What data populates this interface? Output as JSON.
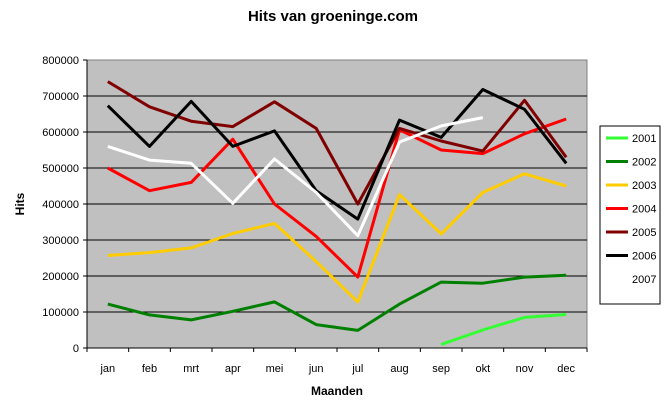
{
  "chart_data": {
    "type": "line",
    "title": "Hits van groeninge.com",
    "xlabel": "Maanden",
    "ylabel": "Hits",
    "categories": [
      "jan",
      "feb",
      "mrt",
      "apr",
      "mei",
      "jun",
      "jul",
      "aug",
      "sep",
      "okt",
      "nov",
      "dec"
    ],
    "ylim": [
      0,
      800000
    ],
    "y_ticks": [
      0,
      100000,
      200000,
      300000,
      400000,
      500000,
      600000,
      700000,
      800000
    ],
    "grid": true,
    "plot_background": "#c0c0c0",
    "legend_position": "right",
    "series": [
      {
        "name": "2001",
        "color": "#33ff33",
        "values": [
          null,
          null,
          null,
          null,
          null,
          null,
          null,
          null,
          10000,
          50000,
          85000,
          93000
        ]
      },
      {
        "name": "2002",
        "color": "#008000",
        "values": [
          122000,
          92000,
          78000,
          102000,
          128000,
          65000,
          49000,
          122000,
          183000,
          180000,
          197000,
          202000
        ]
      },
      {
        "name": "2003",
        "color": "#ffcc00",
        "values": [
          257000,
          265000,
          278000,
          318000,
          346000,
          240000,
          128000,
          426000,
          317000,
          432000,
          484000,
          450000
        ]
      },
      {
        "name": "2004",
        "color": "#ff0000",
        "values": [
          500000,
          437000,
          460000,
          580000,
          400000,
          310000,
          197000,
          606000,
          550000,
          540000,
          595000,
          636000
        ]
      },
      {
        "name": "2005",
        "color": "#800000",
        "values": [
          740000,
          670000,
          630000,
          615000,
          684000,
          610000,
          400000,
          610000,
          575000,
          547000,
          688000,
          530000
        ]
      },
      {
        "name": "2006",
        "color": "#000000",
        "values": [
          673000,
          560000,
          685000,
          560000,
          603000,
          437000,
          358000,
          633000,
          585000,
          718000,
          663000,
          513000
        ]
      },
      {
        "name": "2007",
        "color": "#ffffff",
        "values": [
          560000,
          522000,
          513000,
          402000,
          525000,
          432000,
          312000,
          572000,
          617000,
          640000,
          null,
          null
        ]
      }
    ]
  }
}
